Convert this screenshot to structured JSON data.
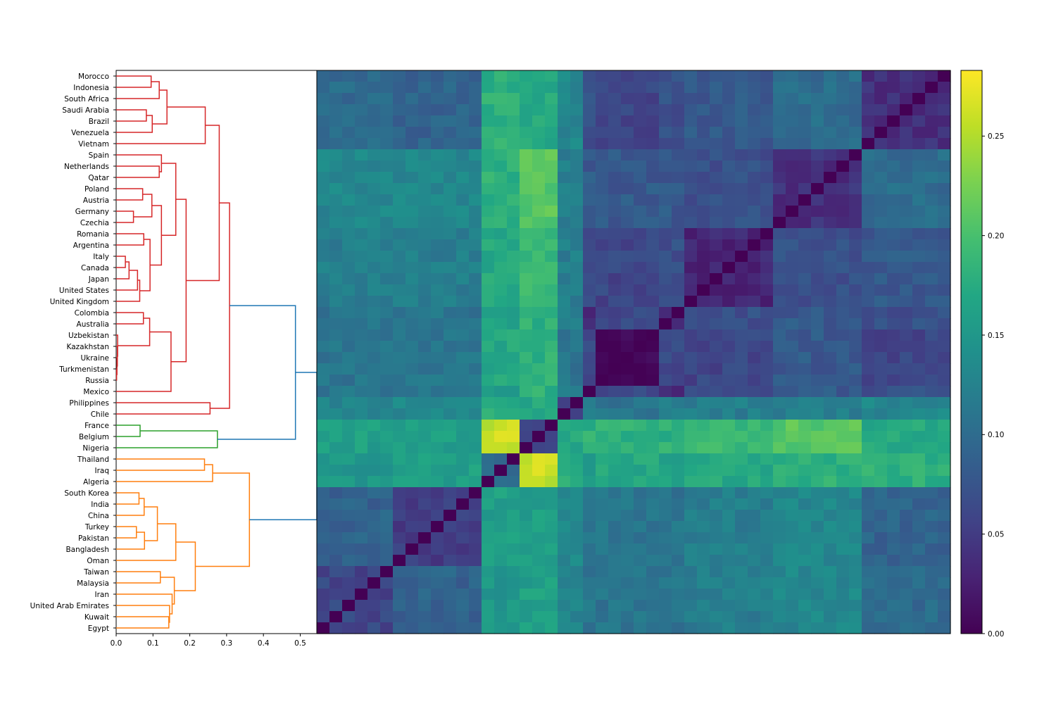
{
  "chart_data": [
    {
      "type": "dendrogram",
      "orientation": "left",
      "labels": [
        "Morocco",
        "Indonesia",
        "South Africa",
        "Saudi Arabia",
        "Brazil",
        "Venezuela",
        "Vietnam",
        "Spain",
        "Netherlands",
        "Qatar",
        "Poland",
        "Austria",
        "Germany",
        "Czechia",
        "Romania",
        "Argentina",
        "Italy",
        "Canada",
        "Japan",
        "United States",
        "United Kingdom",
        "Colombia",
        "Australia",
        "Uzbekistan",
        "Kazakhstan",
        "Ukraine",
        "Turkmenistan",
        "Russia",
        "Mexico",
        "Philippines",
        "Chile",
        "France",
        "Belgium",
        "Nigeria",
        "Thailand",
        "Iraq",
        "Algeria",
        "South Korea",
        "India",
        "China",
        "Turkey",
        "Pakistan",
        "Bangladesh",
        "Oman",
        "Taiwan",
        "Malaysia",
        "Iran",
        "United Arab Emirates",
        "Kuwait",
        "Egypt"
      ],
      "xlim": [
        0,
        0.545
      ],
      "xticks": [
        "0.0",
        "0.1",
        "0.2",
        "0.3",
        "0.4",
        "0.5"
      ],
      "colors": {
        "cluster_red": "#d62728",
        "cluster_green": "#2ca02c",
        "cluster_orange": "#ff7f0e",
        "above_threshold": "#1f77b4"
      },
      "merges": [
        {
          "left": "Morocco",
          "right": "Indonesia",
          "height": 0.095,
          "color": "cluster_red"
        },
        {
          "left": "Saudi Arabia",
          "right": "Brazil",
          "height": 0.082,
          "color": "cluster_red"
        },
        {
          "left": "Turkmenistan",
          "right": "Russia",
          "height": 0.0012,
          "color": "cluster_red"
        },
        {
          "left": "Ukraine",
          "right": "Turkmenistan+Russia",
          "height": 0.0022,
          "color": "cluster_red"
        },
        {
          "left": "Kazakhstan",
          "right": "Ukraine+Turkmenistan+Russia",
          "height": 0.0032,
          "color": "cluster_red"
        },
        {
          "left": "Uzbekistan",
          "right": "Kazakhstan+Ukraine+Turkmenistan+Russia",
          "height": 0.004,
          "color": "cluster_red"
        },
        {
          "left": "Italy",
          "right": "Canada",
          "height": 0.025,
          "color": "cluster_red"
        },
        {
          "left": "Italy+Canada",
          "right": "Japan",
          "height": 0.035,
          "color": "cluster_red"
        },
        {
          "left": "Germany",
          "right": "Czechia",
          "height": 0.047,
          "color": "cluster_red"
        },
        {
          "left": "Turkey",
          "right": "Pakistan",
          "height": 0.055,
          "color": "cluster_orange"
        },
        {
          "left": "Italy+Canada+Japan",
          "right": "United States",
          "height": 0.058,
          "color": "cluster_red"
        },
        {
          "left": "South Korea",
          "right": "India",
          "height": 0.062,
          "color": "cluster_orange"
        },
        {
          "left": "France",
          "right": "Belgium",
          "height": 0.065,
          "color": "cluster_green"
        },
        {
          "left": "Italy+Canada+Japan+United States",
          "right": "United Kingdom",
          "height": 0.064,
          "color": "cluster_red"
        },
        {
          "left": "Poland",
          "right": "Austria",
          "height": 0.072,
          "color": "cluster_red"
        },
        {
          "left": "Colombia",
          "right": "Australia",
          "height": 0.074,
          "color": "cluster_red"
        },
        {
          "left": "Romania",
          "right": "Argentina",
          "height": 0.075,
          "color": "cluster_red"
        },
        {
          "left": "South Korea+India",
          "right": "China",
          "height": 0.076,
          "color": "cluster_orange"
        },
        {
          "left": "Turkey+Pakistan",
          "right": "Bangladesh",
          "height": 0.077,
          "color": "cluster_orange"
        },
        {
          "left": "Saudi Arabia+Brazil",
          "right": "Venezuela",
          "height": 0.098,
          "color": "cluster_red"
        },
        {
          "left": "Poland+Austria",
          "right": "Germany+Czechia",
          "height": 0.097,
          "color": "cluster_red"
        },
        {
          "left": "Colombia+Australia",
          "right": "Uzbekistan+Kazakhstan+Ukraine+Turkmenistan+Russia",
          "height": 0.091,
          "color": "cluster_red"
        },
        {
          "left": "Romania+Argentina",
          "right": "Italy+Canada+Japan+United States+United Kingdom",
          "height": 0.092,
          "color": "cluster_red"
        },
        {
          "left": "South Korea+India+China",
          "right": "Turkey+Pakistan+Bangladesh",
          "height": 0.112,
          "color": "cluster_orange"
        },
        {
          "left": "Netherlands",
          "right": "Qatar",
          "height": 0.117,
          "color": "cluster_red"
        },
        {
          "left": "Morocco+Indonesia",
          "right": "South Africa",
          "height": 0.117,
          "color": "cluster_red"
        },
        {
          "left": "Spain",
          "right": "Netherlands+Qatar",
          "height": 0.123,
          "color": "cluster_red"
        },
        {
          "left": "Taiwan",
          "right": "Malaysia",
          "height": 0.12,
          "color": "cluster_orange"
        },
        {
          "left": "Poland+Austria+Germany+Czechia",
          "right": "Romania+Argentina+Italy+Canada+Japan+United States+United Kingdom",
          "height": 0.123,
          "color": "cluster_red"
        },
        {
          "left": "Morocco+Indonesia+South Africa",
          "right": "Saudi Arabia+Brazil+Venezuela",
          "height": 0.138,
          "color": "cluster_red"
        },
        {
          "left": "Kuwait",
          "right": "Egypt",
          "height": 0.143,
          "color": "cluster_orange"
        },
        {
          "left": "United Arab Emirates",
          "right": "Kuwait+Egypt",
          "height": 0.145,
          "color": "cluster_orange"
        },
        {
          "left": "Colombia+Australia+Uzbekistan+Kazakhstan+Ukraine+Turkmenistan+Russia",
          "right": "Mexico",
          "height": 0.149,
          "color": "cluster_red"
        },
        {
          "left": "Iran",
          "right": "United Arab Emirates+Kuwait+Egypt",
          "height": 0.152,
          "color": "cluster_orange"
        },
        {
          "left": "Taiwan+Malaysia",
          "right": "Iran+United Arab Emirates+Kuwait+Egypt",
          "height": 0.158,
          "color": "cluster_orange"
        },
        {
          "left": "Spain+Netherlands+Qatar",
          "right": "Poland+Austria+Germany+Czechia+Romania+Argentina+Italy+Canada+Japan+United States+United Kingdom",
          "height": 0.162,
          "color": "cluster_red"
        },
        {
          "left": "South Korea+India+China+Turkey+Pakistan+Bangladesh",
          "right": "Oman",
          "height": 0.162,
          "color": "cluster_orange"
        },
        {
          "left": "Spain+Netherlands+Qatar+Poland+Austria+Germany+Czechia+Romania+Argentina+Italy+Canada+Japan+United States+United Kingdom",
          "right": "Colombia+Australia+Uzbekistan+Kazakhstan+Ukraine+Turkmenistan+Russia+Mexico",
          "height": 0.19,
          "color": "cluster_red"
        },
        {
          "left": "South Korea+India+China+Turkey+Pakistan+Bangladesh+Oman",
          "right": "Taiwan+Malaysia+Iran+United Arab Emirates+Kuwait+Egypt",
          "height": 0.215,
          "color": "cluster_orange"
        },
        {
          "left": "Thailand",
          "right": "Iraq",
          "height": 0.24,
          "color": "cluster_orange"
        },
        {
          "left": "Morocco+Indonesia+South Africa+Saudi Arabia+Brazil+Venezuela",
          "right": "Vietnam",
          "height": 0.242,
          "color": "cluster_red"
        },
        {
          "left": "Philippines",
          "right": "Chile",
          "height": 0.255,
          "color": "cluster_red"
        },
        {
          "left": "Thailand+Iraq",
          "right": "Algeria",
          "height": 0.262,
          "color": "cluster_orange"
        },
        {
          "left": "France+Belgium",
          "right": "Nigeria",
          "height": 0.275,
          "color": "cluster_green"
        },
        {
          "left": "Morocco+Indonesia+South Africa+Saudi Arabia+Brazil+Venezuela+Vietnam",
          "right": "Spain+Netherlands+Qatar+Poland+Austria+Germany+Czechia+Romania+Argentina+Italy+Canada+Japan+United States+United Kingdom+Colombia+Australia+Uzbekistan+Kazakhstan+Ukraine+Turkmenistan+Russia+Mexico",
          "height": 0.28,
          "color": "cluster_red"
        },
        {
          "left": "red-cluster-main",
          "right": "Philippines+Chile",
          "height": 0.308,
          "color": "cluster_red"
        },
        {
          "left": "Thailand+Iraq+Algeria",
          "right": "South Korea+India+China+Turkey+Pakistan+Bangladesh+Oman+Taiwan+Malaysia+Iran+United Arab Emirates+Kuwait+Egypt",
          "height": 0.362,
          "color": "cluster_orange"
        },
        {
          "left": "red-cluster",
          "right": "green-cluster",
          "height": 0.487,
          "color": "above_threshold"
        },
        {
          "left": "red+green",
          "right": "orange-cluster",
          "height": 0.545,
          "color": "above_threshold"
        }
      ]
    },
    {
      "type": "heatmap",
      "rows": "same order as dendrogram labels (top to bottom)",
      "columns": "same order as dendrogram labels, reversed (left to right: Egypt ... Morocco)",
      "colormap": "viridis",
      "vmin": 0.0,
      "vmax": 0.283,
      "colorbar_ticks": [
        "0.00",
        "0.05",
        "0.10",
        "0.15",
        "0.20",
        "0.25"
      ],
      "groups": {
        "Morocco": "A",
        "Indonesia": "A",
        "South Africa": "A",
        "Saudi Arabia": "A",
        "Brazil": "A",
        "Venezuela": "A",
        "Vietnam": "A",
        "Spain": "B",
        "Netherlands": "B",
        "Qatar": "B",
        "Poland": "B",
        "Austria": "B",
        "Germany": "B",
        "Czechia": "B",
        "Romania": "C",
        "Argentina": "C",
        "Italy": "C",
        "Canada": "C",
        "Japan": "C",
        "United States": "C",
        "United Kingdom": "C",
        "Colombia": "D",
        "Australia": "D",
        "Uzbekistan": "E",
        "Kazakhstan": "E",
        "Ukraine": "E",
        "Turkmenistan": "E",
        "Russia": "E",
        "Mexico": "D",
        "Philippines": "F",
        "Chile": "F",
        "France": "G",
        "Belgium": "G",
        "Nigeria": "G",
        "Thailand": "H",
        "Iraq": "H",
        "Algeria": "H",
        "South Korea": "I",
        "India": "I",
        "China": "I",
        "Turkey": "I",
        "Pakistan": "I",
        "Bangladesh": "I",
        "Oman": "I",
        "Taiwan": "J",
        "Malaysia": "J",
        "Iran": "J",
        "United Arab Emirates": "J",
        "Kuwait": "J",
        "Egypt": "J"
      },
      "group_distance": {
        "A": {
          "A": 0.04,
          "B": 0.1,
          "C": 0.08,
          "D": 0.07,
          "E": 0.06,
          "F": 0.13,
          "G": 0.17,
          "H": 0.18,
          "I": 0.09,
          "J": 0.1
        },
        "B": {
          "A": 0.1,
          "B": 0.04,
          "C": 0.07,
          "D": 0.08,
          "E": 0.08,
          "F": 0.12,
          "G": 0.21,
          "H": 0.18,
          "I": 0.13,
          "J": 0.13
        },
        "C": {
          "A": 0.08,
          "B": 0.07,
          "C": 0.03,
          "D": 0.07,
          "E": 0.06,
          "F": 0.12,
          "G": 0.19,
          "H": 0.17,
          "I": 0.12,
          "J": 0.12
        },
        "D": {
          "A": 0.07,
          "B": 0.08,
          "C": 0.07,
          "D": 0.04,
          "E": 0.06,
          "F": 0.12,
          "G": 0.18,
          "H": 0.16,
          "I": 0.11,
          "J": 0.11
        },
        "E": {
          "A": 0.06,
          "B": 0.08,
          "C": 0.06,
          "D": 0.06,
          "E": 0.002,
          "F": 0.11,
          "G": 0.18,
          "H": 0.17,
          "I": 0.11,
          "J": 0.11
        },
        "F": {
          "A": 0.13,
          "B": 0.12,
          "C": 0.12,
          "D": 0.12,
          "E": 0.11,
          "F": 0.06,
          "G": 0.17,
          "H": 0.18,
          "I": 0.13,
          "J": 0.13
        },
        "G": {
          "A": 0.17,
          "B": 0.21,
          "C": 0.19,
          "D": 0.18,
          "E": 0.18,
          "F": 0.17,
          "G": 0.05,
          "H": 0.26,
          "I": 0.16,
          "J": 0.16
        },
        "H": {
          "A": 0.18,
          "B": 0.18,
          "C": 0.17,
          "D": 0.16,
          "E": 0.17,
          "F": 0.18,
          "G": 0.26,
          "H": 0.1,
          "I": 0.16,
          "J": 0.15
        },
        "I": {
          "A": 0.09,
          "B": 0.13,
          "C": 0.12,
          "D": 0.11,
          "E": 0.11,
          "F": 0.13,
          "G": 0.16,
          "H": 0.16,
          "I": 0.05,
          "J": 0.09
        },
        "J": {
          "A": 0.1,
          "B": 0.13,
          "C": 0.12,
          "D": 0.11,
          "E": 0.11,
          "F": 0.13,
          "G": 0.16,
          "H": 0.15,
          "I": 0.09,
          "J": 0.06
        }
      }
    }
  ]
}
